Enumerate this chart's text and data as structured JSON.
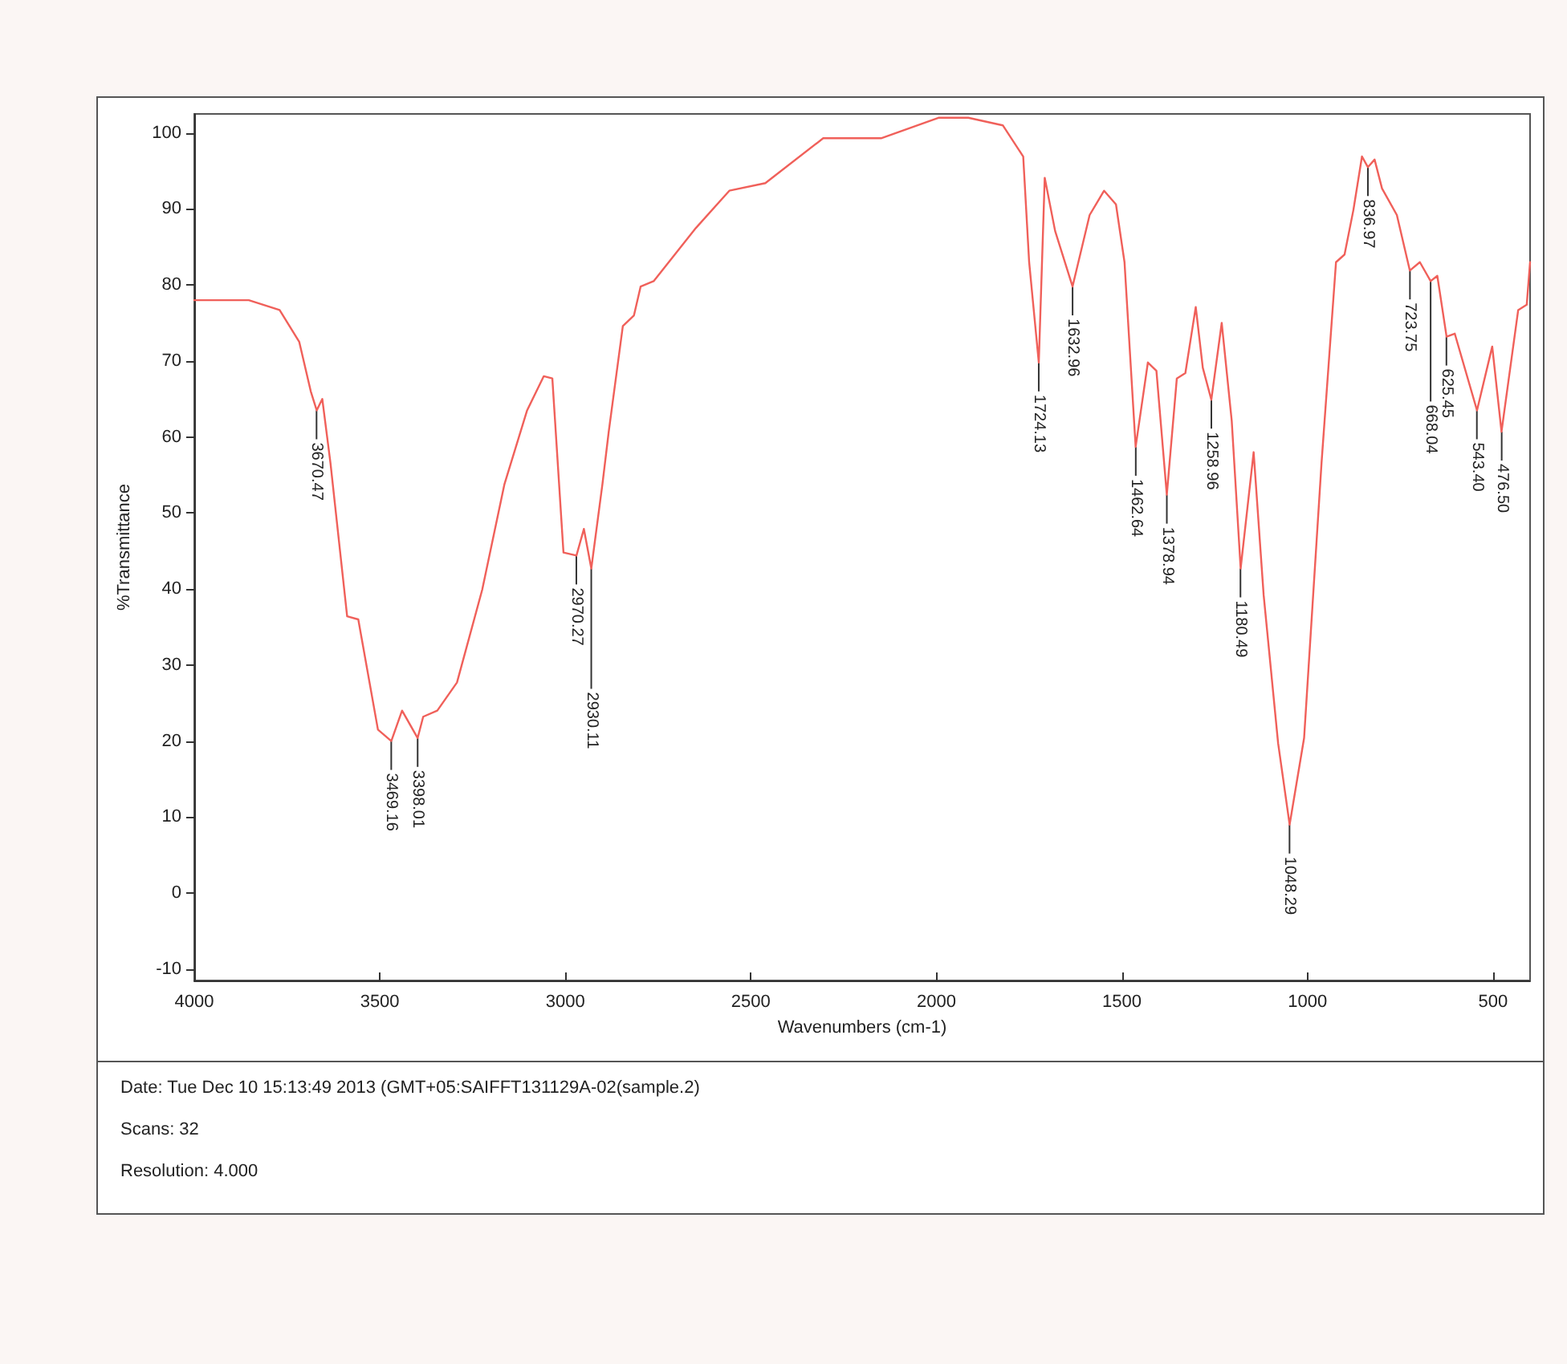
{
  "chart_data": {
    "type": "line",
    "xlabel": "Wavenumbers (cm-1)",
    "ylabel": "%Transmittance",
    "x": [
      4000,
      3853,
      3770,
      3717,
      3686,
      3670,
      3655,
      3633,
      3588,
      3558,
      3505,
      3469,
      3440,
      3398,
      3383,
      3345,
      3292,
      3224,
      3164,
      3103,
      3058,
      3035,
      3005,
      2970,
      2950,
      2930,
      2900,
      2883,
      2845,
      2815,
      2797,
      2762,
      2648,
      2558,
      2461,
      2305,
      2149,
      1993,
      1914,
      1821,
      1766,
      1750,
      1724,
      1708,
      1680,
      1633,
      1587,
      1548,
      1516,
      1493,
      1463,
      1430,
      1407,
      1379,
      1352,
      1329,
      1301,
      1282,
      1259,
      1231,
      1204,
      1180,
      1145,
      1118,
      1079,
      1048,
      1009,
      962,
      923,
      900,
      876,
      853,
      837,
      819,
      799,
      759,
      724,
      697,
      668,
      650,
      625,
      603,
      543,
      502,
      477,
      432,
      409,
      400
    ],
    "series": [
      {
        "color": "#f0605a",
        "values": [
          78,
          78,
          76.7,
          72.5,
          66,
          63.5,
          65,
          56.6,
          36.4,
          36,
          21.5,
          20,
          24,
          20.4,
          23.2,
          24,
          27.7,
          39.9,
          53.8,
          63.5,
          68,
          67.7,
          44.8,
          44.4,
          47.9,
          42.7,
          53.8,
          60.7,
          74.6,
          76,
          79.8,
          80.5,
          87.5,
          92.4,
          93.4,
          99.3,
          99.3,
          102,
          102,
          101,
          96.9,
          83,
          69.8,
          94.1,
          87.1,
          79.8,
          89.2,
          92.4,
          90.6,
          83,
          58.7,
          69.8,
          68.7,
          52.4,
          67.7,
          68.4,
          77.1,
          69.1,
          64.9,
          75,
          62.1,
          42.7,
          58,
          39.2,
          19.7,
          9,
          20.4,
          56.6,
          83,
          84,
          89.9,
          96.9,
          95.5,
          96.5,
          92.7,
          89.2,
          81.9,
          83,
          80.5,
          81.2,
          73.2,
          73.6,
          63.5,
          71.9,
          60.7,
          76.7,
          77.4,
          83
        ]
      }
    ],
    "xlim": [
      4000,
      400
    ],
    "xticks": [
      4000,
      3500,
      3000,
      2500,
      2000,
      1500,
      1000,
      500
    ],
    "ylim": [
      -11.5,
      102.5
    ],
    "yticks": [
      -10,
      0,
      10,
      20,
      30,
      40,
      50,
      60,
      70,
      80,
      90,
      100
    ],
    "grid": false,
    "marker": "none",
    "line_style": "solid",
    "annotations": [
      {
        "text": "3670.47",
        "x": 3670.47,
        "y": 63.5
      },
      {
        "text": "3469.16",
        "x": 3469.16,
        "y": 20
      },
      {
        "text": "3398.01",
        "x": 3398.01,
        "y": 20.4
      },
      {
        "text": "2970.27",
        "x": 2970.27,
        "y": 44.4
      },
      {
        "text": "2930.11",
        "x": 2930.11,
        "y": 42.7
      },
      {
        "text": "1724.13",
        "x": 1724.13,
        "y": 69.8
      },
      {
        "text": "1632.96",
        "x": 1632.96,
        "y": 79.8
      },
      {
        "text": "1462.64",
        "x": 1462.64,
        "y": 58.7
      },
      {
        "text": "1378.94",
        "x": 1378.94,
        "y": 52.4
      },
      {
        "text": "1258.96",
        "x": 1258.96,
        "y": 64.9
      },
      {
        "text": "1180.49",
        "x": 1180.49,
        "y": 42.7
      },
      {
        "text": "1048.29",
        "x": 1048.29,
        "y": 9
      },
      {
        "text": "836.97",
        "x": 836.97,
        "y": 95.5
      },
      {
        "text": "723.75",
        "x": 723.75,
        "y": 81.9
      },
      {
        "text": "668.04",
        "x": 668.04,
        "y": 80.5
      },
      {
        "text": "625.45",
        "x": 625.45,
        "y": 73.2
      },
      {
        "text": "543.40",
        "x": 543.4,
        "y": 63.5
      },
      {
        "text": "476.50",
        "x": 476.5,
        "y": 60.7
      },
      "Date: Tue Dec 10 15:13:49 2013 (GMT+05:SAIFFT131129A-02(sample.2)",
      "Scans: 32",
      "Resolution:  4.000"
    ]
  }
}
